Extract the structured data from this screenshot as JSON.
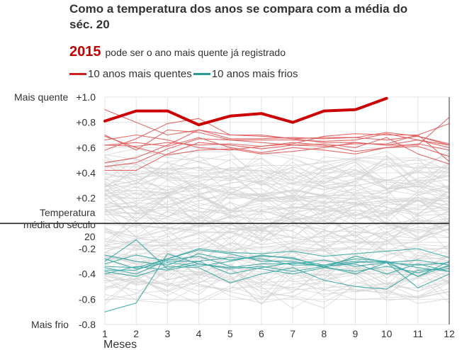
{
  "header": {
    "title": "Como a temperatura dos anos se compara com a média do séc. 20",
    "highlight_year": "2015",
    "subtitle_text": "pode ser o ano mais quente já registrado"
  },
  "legend": {
    "items": [
      {
        "label": "10 anos mais quentes",
        "color": "#cc1f1f"
      },
      {
        "label": "10 anos mais frios",
        "color": "#2a9a96"
      }
    ]
  },
  "colors": {
    "highlight": "#cc0000",
    "warm": "#e05a5a",
    "cold": "#3aa7a3",
    "other": "#d3d3d3",
    "grid": "#e3e3e3",
    "baseline": "#222222"
  },
  "chart_data": {
    "type": "line",
    "title": "Como a temperatura dos anos se compara com a média do séc. 20",
    "xlabel": "Meses",
    "ylabel": "",
    "x": [
      1,
      2,
      3,
      4,
      5,
      6,
      7,
      8,
      9,
      10,
      11,
      12
    ],
    "xlim": [
      1,
      12
    ],
    "ylim": [
      -0.8,
      1.0
    ],
    "y_ticks": [
      "+1.0",
      "+0.8",
      "+0.6",
      "+0.4",
      "+0.2",
      "-0.2",
      "-0.4",
      "-0.6",
      "-0.8"
    ],
    "y_tick_values": [
      1.0,
      0.8,
      0.6,
      0.4,
      0.2,
      -0.2,
      -0.4,
      -0.6,
      -0.8
    ],
    "y_annotations": {
      "top": "Mais quente",
      "bottom": "Mais frio",
      "baseline_line1": "Temperatura",
      "baseline_line2": "média do século",
      "baseline_line3": "20"
    },
    "highlight_series": {
      "name": "2015",
      "values": [
        0.81,
        0.89,
        0.89,
        0.78,
        0.85,
        0.87,
        0.8,
        0.89,
        0.9,
        0.99
      ]
    },
    "warm_series": [
      {
        "values": [
          0.7,
          0.58,
          0.74,
          0.72,
          0.66,
          0.66,
          0.66,
          0.65,
          0.66,
          0.71,
          0.66,
          0.6
        ]
      },
      {
        "values": [
          0.9,
          0.8,
          0.7,
          0.74,
          0.7,
          0.7,
          0.67,
          0.68,
          0.68,
          0.72,
          0.69,
          0.63
        ]
      },
      {
        "values": [
          0.48,
          0.52,
          0.62,
          0.74,
          0.67,
          0.67,
          0.68,
          0.67,
          0.68,
          0.66,
          0.69,
          0.62
        ]
      },
      {
        "values": [
          0.45,
          0.48,
          0.59,
          0.67,
          0.66,
          0.64,
          0.62,
          0.61,
          0.63,
          0.63,
          0.7,
          0.49
        ]
      },
      {
        "values": [
          0.42,
          0.42,
          0.55,
          0.64,
          0.62,
          0.59,
          0.62,
          0.63,
          0.6,
          0.68,
          0.55,
          0.47
        ]
      },
      {
        "values": [
          0.62,
          0.61,
          0.64,
          0.62,
          0.63,
          0.61,
          0.64,
          0.62,
          0.57,
          0.6,
          0.61,
          0.53
        ]
      },
      {
        "values": [
          0.58,
          0.67,
          0.79,
          0.83,
          0.7,
          0.69,
          0.67,
          0.64,
          0.64,
          0.62,
          0.66,
          0.62
        ]
      },
      {
        "values": [
          0.62,
          0.64,
          0.61,
          0.68,
          0.6,
          0.56,
          0.6,
          0.58,
          0.55,
          0.6,
          0.63,
          0.58
        ]
      },
      {
        "values": [
          0.66,
          0.7,
          0.66,
          0.6,
          0.58,
          0.61,
          0.63,
          0.69,
          0.71,
          0.7,
          0.7,
          0.79
        ]
      },
      {
        "values": [
          0.69,
          0.6,
          0.54,
          0.58,
          0.59,
          0.55,
          0.57,
          0.6,
          0.64,
          0.62,
          0.62,
          0.84
        ]
      }
    ],
    "cold_series": [
      {
        "values": [
          -0.7,
          -0.63,
          -0.24,
          -0.32,
          -0.36,
          -0.34,
          -0.38,
          -0.34,
          -0.4,
          -0.31,
          -0.42,
          -0.3
        ]
      },
      {
        "values": [
          -0.37,
          -0.37,
          -0.28,
          -0.21,
          -0.24,
          -0.3,
          -0.3,
          -0.34,
          -0.31,
          -0.3,
          -0.42,
          -0.33
        ]
      },
      {
        "values": [
          -0.38,
          -0.42,
          -0.34,
          -0.35,
          -0.47,
          -0.4,
          -0.35,
          -0.45,
          -0.5,
          -0.52,
          -0.37,
          -0.36
        ]
      },
      {
        "values": [
          -0.3,
          -0.13,
          -0.36,
          -0.3,
          -0.4,
          -0.35,
          -0.31,
          -0.34,
          -0.32,
          -0.4,
          -0.32,
          -0.38
        ]
      },
      {
        "values": [
          -0.25,
          -0.3,
          -0.33,
          -0.24,
          -0.29,
          -0.26,
          -0.27,
          -0.35,
          -0.26,
          -0.31,
          -0.51,
          -0.4
        ]
      },
      {
        "values": [
          -0.35,
          -0.4,
          -0.29,
          -0.26,
          -0.34,
          -0.36,
          -0.4,
          -0.35,
          -0.38,
          -0.34,
          -0.39,
          -0.34
        ]
      },
      {
        "values": [
          -0.32,
          -0.25,
          -0.3,
          -0.3,
          -0.27,
          -0.28,
          -0.33,
          -0.33,
          -0.28,
          -0.3,
          -0.35,
          -0.38
        ]
      },
      {
        "values": [
          -0.28,
          -0.36,
          -0.31,
          -0.34,
          -0.3,
          -0.25,
          -0.28,
          -0.33,
          -0.3,
          -0.31,
          -0.29,
          -0.33
        ]
      },
      {
        "values": [
          -0.34,
          -0.35,
          -0.28,
          -0.2,
          -0.23,
          -0.24,
          -0.22,
          -0.26,
          -0.24,
          -0.22,
          -0.2,
          -0.27
        ]
      },
      {
        "values": [
          -0.4,
          -0.34,
          -0.37,
          -0.32,
          -0.35,
          -0.32,
          -0.32,
          -0.29,
          -0.34,
          -0.31,
          -0.33,
          -0.31
        ]
      }
    ],
    "grid": true
  },
  "x_axis_label": "Meses"
}
